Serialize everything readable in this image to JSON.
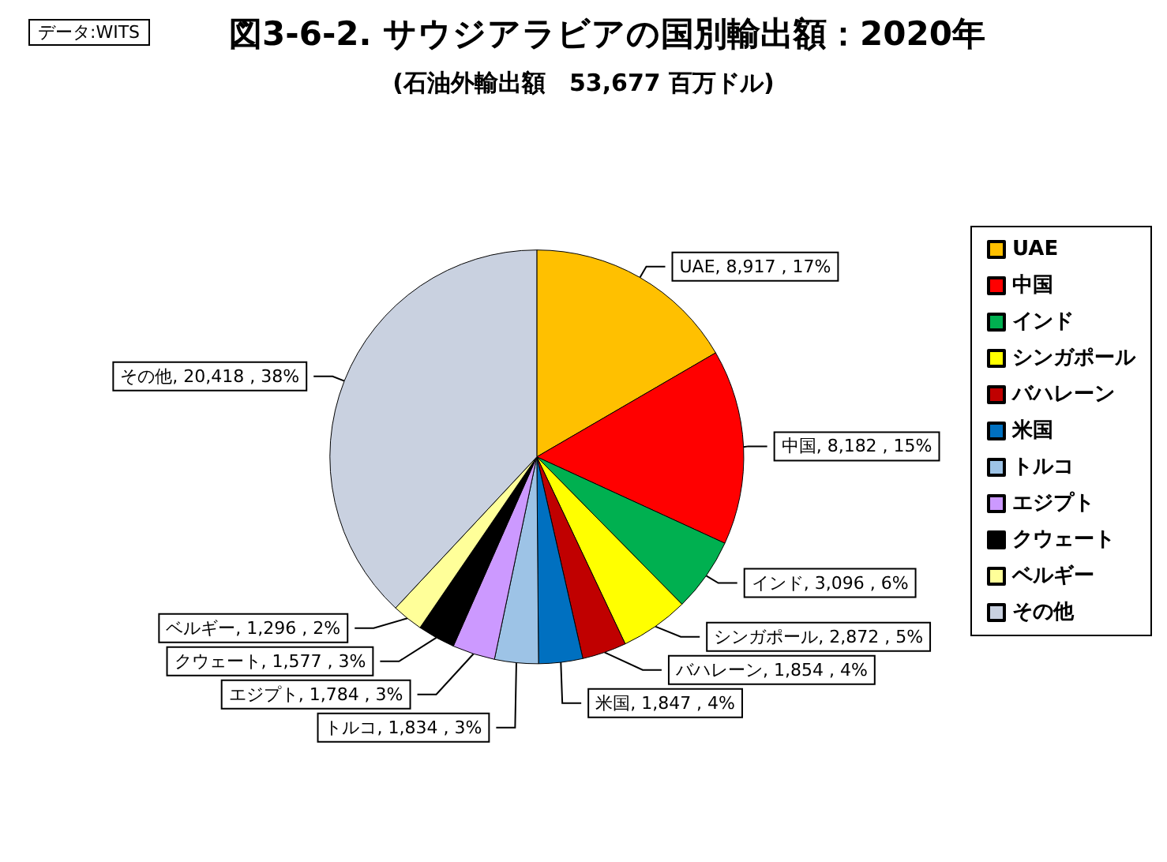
{
  "chart_data": {
    "type": "pie",
    "title": "図3-6-2. サウジアラビアの国別輸出額：2020年",
    "subtitle": "(石油外輸出額　53,677 百万ドル)",
    "annotations": [
      "データ:WITS"
    ],
    "categories": [
      "UAE",
      "中国",
      "インド",
      "シンガポール",
      "バハレーン",
      "米国",
      "トルコ",
      "エジプト",
      "クウェート",
      "ベルギー",
      "その他"
    ],
    "values": [
      8917,
      8182,
      3096,
      2872,
      1854,
      1847,
      1834,
      1784,
      1577,
      1296,
      20418
    ],
    "value_labels": [
      "UAE, 8,917 , 17%",
      "中国, 8,182 , 15%",
      "インド, 3,096 , 6%",
      "シンガポール, 2,872 , 5%",
      "バハレーン, 1,854 , 4%",
      "米国, 1,847 , 4%",
      "トルコ, 1,834 , 3%",
      "エジプト, 1,784 , 3%",
      "クウェート, 1,577 , 3%",
      "ベルギー, 1,296 , 2%",
      "その他, 20,418 , 38%"
    ],
    "colors": [
      "#ffc000",
      "#ff0000",
      "#00b050",
      "#ffff00",
      "#c00000",
      "#0070c0",
      "#9dc3e6",
      "#cc99ff",
      "#000000",
      "#ffff99",
      "#c9d1e0"
    ],
    "legend": "right"
  }
}
